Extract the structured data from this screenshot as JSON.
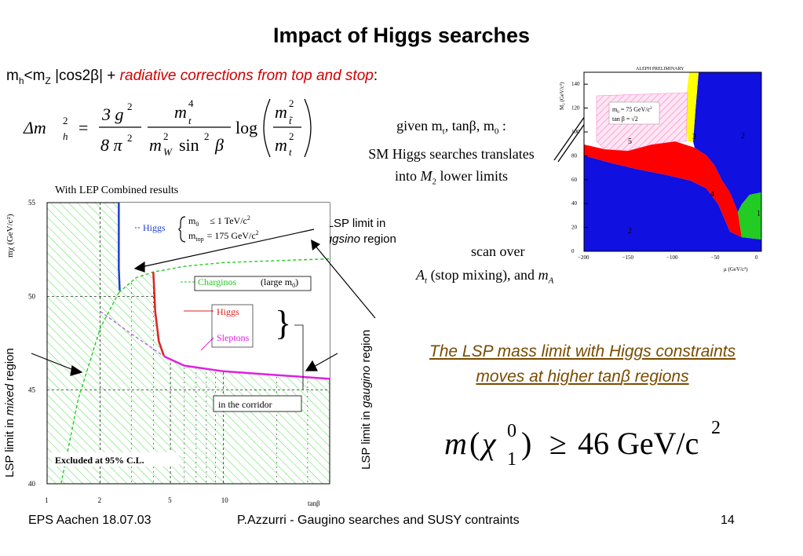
{
  "slide": {
    "title": "Impact of Higgs searches",
    "intro": {
      "m": "m",
      "h": "h",
      "lt_m": "<m",
      "Z": "Z",
      "cos": " |cos2β| + ",
      "red": "radiative corrections from top and stop",
      "colon": ":"
    },
    "formula": {
      "delta_m": "Δm",
      "sq": "2",
      "h": "h",
      "eq": "=",
      "num_3g": "3 g",
      "den_8pi": "8 π",
      "num_mt": "m",
      "t_sub": "t",
      "four": "4",
      "den_mw": "m",
      "w_sub": "W",
      "sin": "sin",
      "beta": "β",
      "log": "log",
      "stop_sub": "t̃"
    },
    "given": {
      "line1": "given  m",
      "t": "t",
      "line1b": ", tanβ, m",
      "zero": "0",
      "line1c": " :",
      "line2": "SM Higgs searches  translates",
      "line3a": "into ",
      "M": "M",
      "two": "2",
      "line3b": " lower limits"
    },
    "scan": {
      "line1": "scan over",
      "A": "A",
      "t": "t",
      "line2": " (stop mixing),  and ",
      "m": "m",
      "Asub": "A"
    },
    "lsp_higgsino": {
      "line1": "LSP limit in",
      "italic": "higgsino",
      "line2": " region"
    },
    "lsp_mixed": {
      "prefix": "LSP limit in ",
      "italic": "mixed",
      "suffix": " region"
    },
    "lsp_gaugino": {
      "prefix": "LSP limit in ",
      "italic": "gaugino",
      "suffix": " region"
    },
    "conclusion": {
      "line1": "The LSP mass limit with Higgs constraints",
      "line2a": "moves at higher tan",
      "beta": "β",
      "line2b": " regions"
    },
    "result": {
      "m": "m",
      "chi": "χ",
      "one": "1",
      "zero": "0",
      "geq": "≥",
      "value": "46",
      "unit": "GeV/c",
      "sq": "2",
      "lp": "(",
      "rp": ")"
    },
    "footer": {
      "left": "EPS Aachen  18.07.03",
      "center": "P.Azzurri - Gaugino searches and SUSY contraints",
      "right": "14"
    }
  },
  "chart_data": [
    {
      "type": "line",
      "title": "With LEP Combined results",
      "xlabel": "tanβ",
      "ylabel": "mχ (GeV/c²)",
      "x_scale": "log",
      "xlim": [
        1,
        40
      ],
      "ylim": [
        40,
        55
      ],
      "x_ticks": [
        1,
        2,
        5,
        10
      ],
      "x_tick_labels": [
        "1",
        "2",
        "5",
        "10"
      ],
      "y_ticks": [
        40,
        45,
        50,
        55
      ],
      "y_tick_labels": [
        "40",
        "45",
        "50",
        "55"
      ],
      "grid": true,
      "legend_box": {
        "m0": "m",
        "m0_sub": "0",
        "m0_val": "≤ 1  TeV/c",
        "sq": "2",
        "mtop": "m",
        "mtop_sub": "top",
        "mtop_val": "= 175  GeV/c"
      },
      "series": [
        {
          "name": "Higgs",
          "color": "#1f3fd0",
          "x": [
            2.55,
            2.55,
            2.58
          ],
          "y": [
            55,
            51.5,
            50.3
          ]
        },
        {
          "name": "Charginos (large m0)",
          "color": "#22cc22",
          "x": [
            2.55,
            3.2,
            4.0,
            6,
            10,
            20,
            40
          ],
          "y": [
            50.2,
            51.0,
            51.3,
            51.6,
            51.8,
            51.9,
            52.0
          ]
        },
        {
          "name": "Higgs",
          "color": "#e02020",
          "x": [
            4.0,
            4.05,
            4.1,
            4.3,
            4.6
          ],
          "y": [
            51.3,
            50.3,
            49.2,
            47.6,
            46.8
          ]
        },
        {
          "name": "Sleptons",
          "color": "#e020e0",
          "x": [
            4.6,
            6,
            10,
            20,
            40
          ],
          "y": [
            46.8,
            46.3,
            46.0,
            45.8,
            45.6
          ]
        },
        {
          "color": "#22cc22",
          "x": [
            1.2,
            1.5,
            2.0,
            2.55
          ],
          "y": [
            40,
            44.5,
            48.3,
            50.2
          ]
        },
        {
          "color": "#bb66ee",
          "x": [
            2.0,
            3.0,
            4.6
          ],
          "y": [
            49.2,
            48.0,
            46.8
          ]
        }
      ],
      "annotations": [
        "Higgs",
        "Charginos",
        "(large m",
        "0",
        ")",
        "Higgs",
        "Sleptons",
        "in the corridor",
        "Excluded at 95% C.L."
      ]
    },
    {
      "type": "heatmap",
      "title": "ALEPH PRELIMINARY",
      "xlabel": "μ (GeV/c²)",
      "ylabel": "M₂ (GeV/c²)",
      "xlim": [
        -200,
        0
      ],
      "ylim": [
        0,
        150
      ],
      "x_ticks": [
        -200,
        -150,
        -100,
        -50,
        0
      ],
      "x_tick_labels": [
        "−200",
        "−150",
        "−100",
        "−50",
        "0"
      ],
      "y_ticks": [
        0,
        20,
        40,
        60,
        80,
        100,
        120,
        140
      ],
      "y_tick_labels": [
        "0",
        "20",
        "40",
        "60",
        "80",
        "100",
        "120",
        "140"
      ],
      "legend_text": [
        "m",
        "0",
        " = 75 GeV/c",
        "2",
        "tan β = √2"
      ],
      "regions": [
        {
          "label": "1",
          "color": "#22cc22"
        },
        {
          "label": "2",
          "color": "#1010e0"
        },
        {
          "label": "3",
          "color": "#ffff00"
        },
        {
          "label": "4",
          "color": "#ff0000"
        },
        {
          "label": "5",
          "color": "#ffccee"
        },
        {
          "label": "2",
          "color": "#1010e0"
        }
      ]
    }
  ]
}
